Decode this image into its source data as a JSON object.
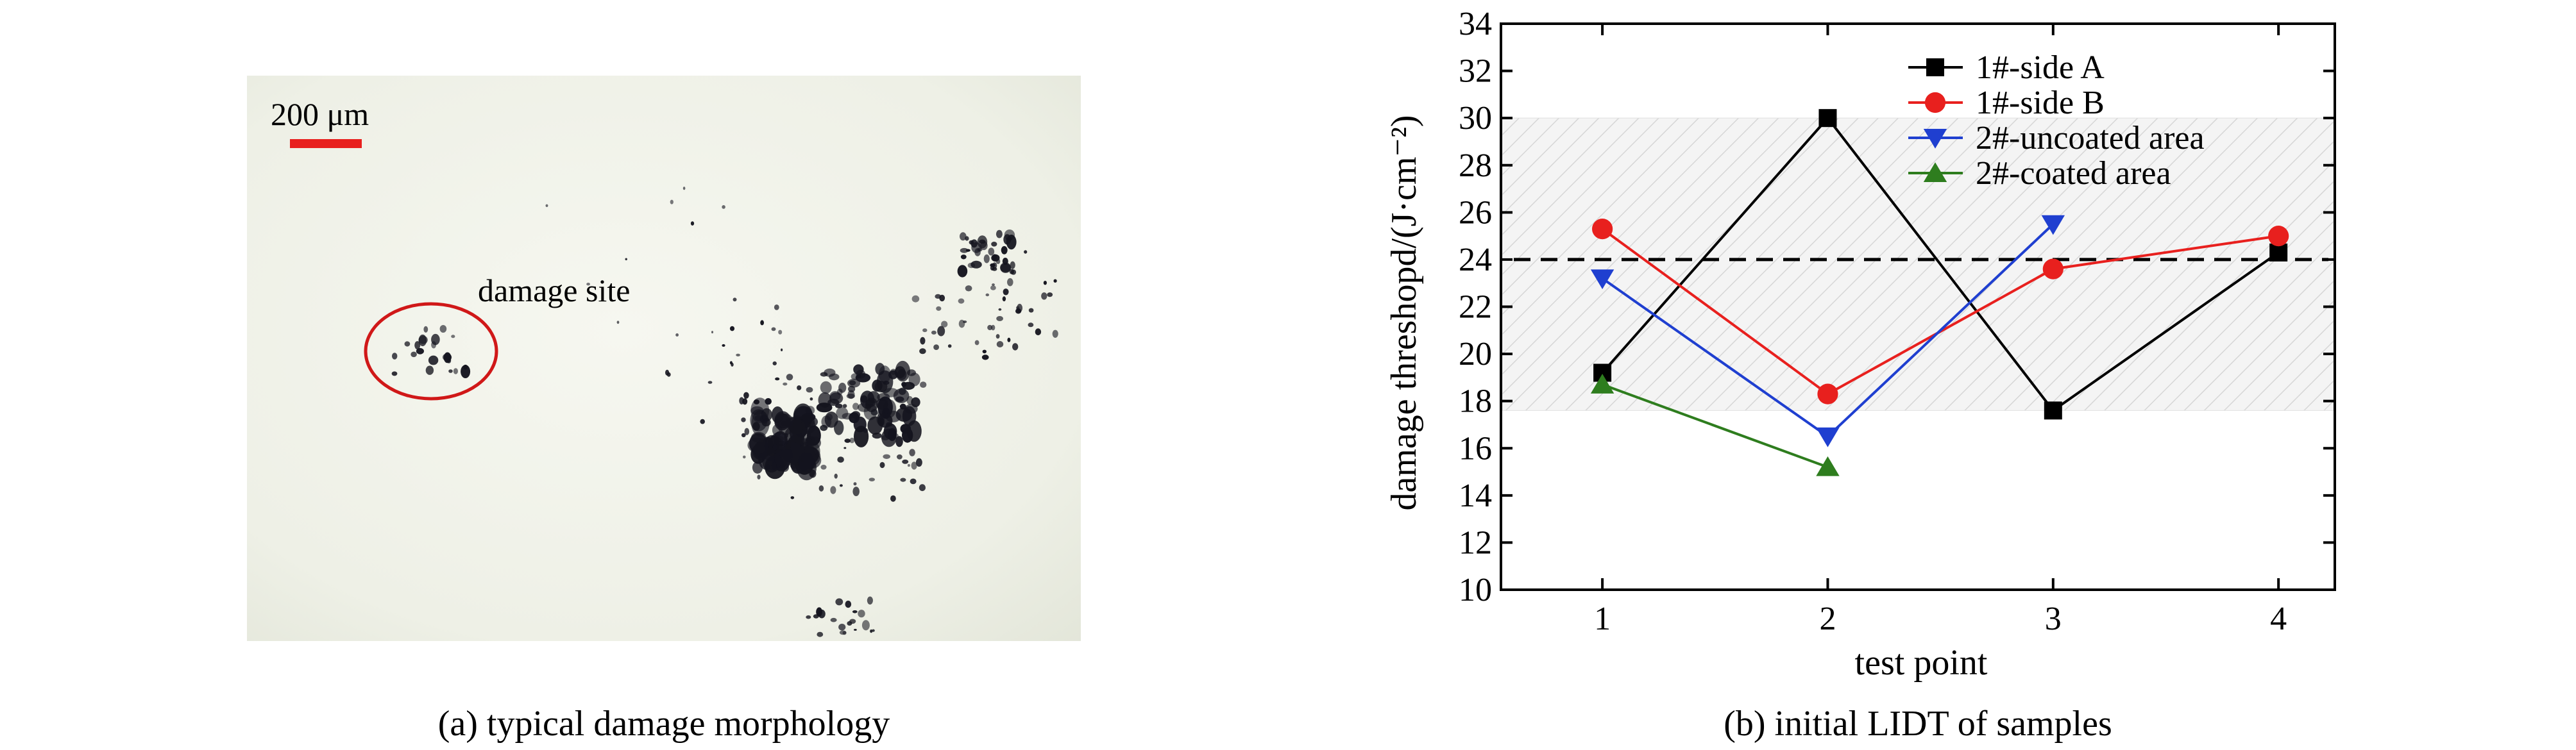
{
  "left_panel": {
    "scale_bar_label": "200 μm",
    "annotation_label": "damage site",
    "caption": "(a) typical damage morphology",
    "colors": {
      "scale_bar": "#e8201e",
      "circle": "#d01818",
      "background": "#f1f3ea",
      "spots": "#14141e"
    }
  },
  "right_panel": {
    "caption": "(b) initial LIDT of samples"
  },
  "chart_data": {
    "type": "line",
    "title": "",
    "xlabel": "test point",
    "ylabel": "damage threshopd/(J·cm⁻²)",
    "xlim": [
      0.55,
      4.25
    ],
    "ylim": [
      10,
      34
    ],
    "x_ticks": [
      1,
      2,
      3,
      4
    ],
    "y_ticks": [
      10,
      12,
      14,
      16,
      18,
      20,
      22,
      24,
      26,
      28,
      30,
      32,
      34
    ],
    "legend_position": "top-right",
    "reference_line": {
      "y": 24,
      "style": "dashed"
    },
    "shaded_band": {
      "y_range": [
        17.6,
        30
      ],
      "pattern": "diagonal-hatch"
    },
    "series": [
      {
        "name": "1#-side A",
        "marker": "square",
        "color": "#000000",
        "x": [
          1,
          2,
          3,
          4
        ],
        "y": [
          19.2,
          30.0,
          17.6,
          24.3
        ]
      },
      {
        "name": "1#-side B",
        "marker": "circle",
        "color": "#e8201e",
        "x": [
          1,
          2,
          3,
          4
        ],
        "y": [
          25.3,
          18.3,
          23.6,
          25.0
        ]
      },
      {
        "name": "2#-uncoated area",
        "marker": "triangle-down",
        "color": "#1f3fd0",
        "x": [
          1,
          2,
          3
        ],
        "y": [
          23.2,
          16.5,
          25.5
        ]
      },
      {
        "name": "2#-coated area",
        "marker": "triangle-up",
        "color": "#2e7d1e",
        "x": [
          1,
          2
        ],
        "y": [
          18.7,
          15.2
        ]
      }
    ]
  }
}
